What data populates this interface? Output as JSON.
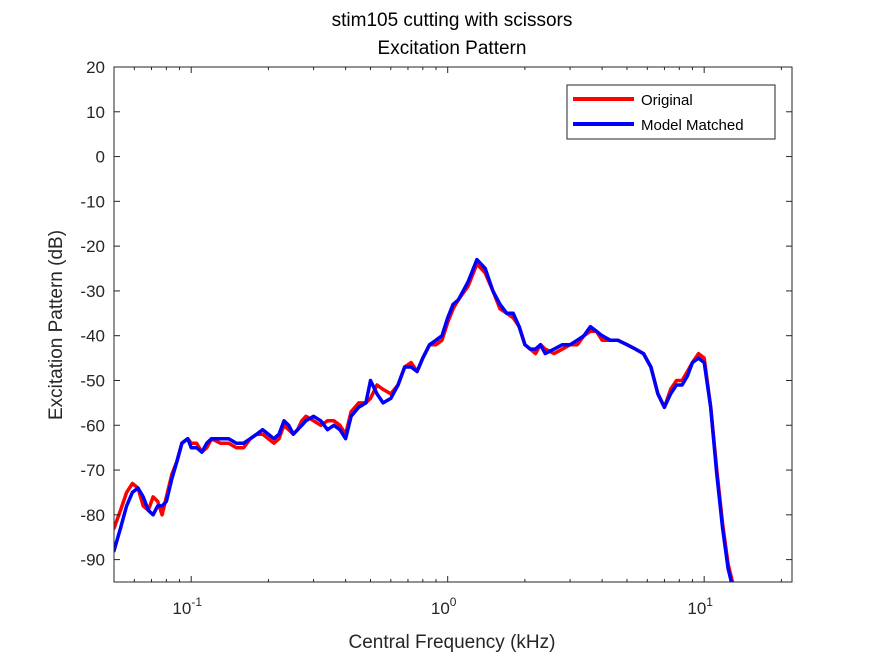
{
  "chart_data": {
    "type": "line",
    "title": "stim105 cutting with scissors",
    "subtitle": "Excitation Pattern",
    "xlabel": "Central Frequency (kHz)",
    "ylabel": "Excitation Pattern (dB)",
    "xscale": "log",
    "xlim": [
      0.05,
      22
    ],
    "ylim": [
      -95,
      20
    ],
    "yticks": [
      20,
      10,
      0,
      -10,
      -20,
      -30,
      -40,
      -50,
      -60,
      -70,
      -80,
      -90
    ],
    "xticks": [
      {
        "value": 0.1,
        "base": "10",
        "exp": "-1"
      },
      {
        "value": 1,
        "base": "10",
        "exp": "0"
      },
      {
        "value": 10,
        "base": "10",
        "exp": "1"
      }
    ],
    "grid": false,
    "legend_position": "top-right",
    "series": [
      {
        "name": "Original",
        "color": "#ff0000",
        "x": [
          0.05,
          0.053,
          0.056,
          0.059,
          0.062,
          0.065,
          0.068,
          0.071,
          0.074,
          0.077,
          0.08,
          0.084,
          0.088,
          0.092,
          0.097,
          0.1,
          0.105,
          0.11,
          0.115,
          0.12,
          0.13,
          0.14,
          0.15,
          0.16,
          0.17,
          0.18,
          0.19,
          0.2,
          0.21,
          0.22,
          0.23,
          0.24,
          0.25,
          0.26,
          0.27,
          0.28,
          0.3,
          0.32,
          0.34,
          0.36,
          0.38,
          0.4,
          0.42,
          0.45,
          0.48,
          0.5,
          0.53,
          0.56,
          0.6,
          0.64,
          0.68,
          0.72,
          0.76,
          0.8,
          0.85,
          0.9,
          0.95,
          1.0,
          1.05,
          1.1,
          1.2,
          1.3,
          1.4,
          1.5,
          1.6,
          1.7,
          1.8,
          1.9,
          2.0,
          2.1,
          2.2,
          2.3,
          2.4,
          2.6,
          2.8,
          3.0,
          3.2,
          3.4,
          3.6,
          3.8,
          4.0,
          4.3,
          4.6,
          5.0,
          5.4,
          5.8,
          6.2,
          6.6,
          7.0,
          7.4,
          7.8,
          8.2,
          8.6,
          9.0,
          9.5,
          10.0,
          10.6,
          11.2,
          11.8,
          12.4,
          12.9
        ],
        "y": [
          -83,
          -79,
          -75,
          -73,
          -74,
          -78,
          -79,
          -76,
          -77,
          -80,
          -76,
          -71,
          -68,
          -64,
          -63,
          -64,
          -64,
          -66,
          -65,
          -63,
          -64,
          -64,
          -65,
          -65,
          -63,
          -62,
          -62,
          -63,
          -64,
          -63,
          -60,
          -61,
          -62,
          -61,
          -59,
          -58,
          -59,
          -60,
          -59,
          -59,
          -60,
          -62,
          -57,
          -55,
          -55,
          -54,
          -51,
          -52,
          -53,
          -51,
          -47,
          -46,
          -48,
          -45,
          -42,
          -42,
          -41,
          -37,
          -34,
          -32,
          -29,
          -24,
          -26,
          -30,
          -34,
          -35,
          -36,
          -38,
          -42,
          -43,
          -44,
          -42,
          -43,
          -44,
          -43,
          -42,
          -42,
          -40,
          -39,
          -39,
          -41,
          -41,
          -41,
          -42,
          -43,
          -44,
          -47,
          -53,
          -56,
          -52,
          -50,
          -50,
          -48,
          -46,
          -44,
          -45,
          -56,
          -70,
          -82,
          -91,
          -95
        ]
      },
      {
        "name": "Model Matched",
        "color": "#0000ff",
        "x": [
          0.05,
          0.053,
          0.056,
          0.059,
          0.062,
          0.065,
          0.068,
          0.071,
          0.074,
          0.077,
          0.08,
          0.084,
          0.088,
          0.092,
          0.097,
          0.1,
          0.105,
          0.11,
          0.115,
          0.12,
          0.13,
          0.14,
          0.15,
          0.16,
          0.17,
          0.18,
          0.19,
          0.2,
          0.21,
          0.22,
          0.23,
          0.24,
          0.25,
          0.26,
          0.27,
          0.28,
          0.3,
          0.32,
          0.34,
          0.36,
          0.38,
          0.4,
          0.42,
          0.45,
          0.48,
          0.5,
          0.53,
          0.56,
          0.6,
          0.64,
          0.68,
          0.72,
          0.76,
          0.8,
          0.85,
          0.9,
          0.95,
          1.0,
          1.05,
          1.1,
          1.2,
          1.3,
          1.4,
          1.5,
          1.6,
          1.7,
          1.8,
          1.9,
          2.0,
          2.1,
          2.2,
          2.3,
          2.4,
          2.6,
          2.8,
          3.0,
          3.2,
          3.4,
          3.6,
          3.8,
          4.0,
          4.3,
          4.6,
          5.0,
          5.4,
          5.8,
          6.2,
          6.6,
          7.0,
          7.4,
          7.8,
          8.2,
          8.6,
          9.0,
          9.5,
          10.0,
          10.6,
          11.2,
          11.8,
          12.4,
          12.9
        ],
        "y": [
          -88,
          -83,
          -78,
          -75,
          -74,
          -76,
          -79,
          -80,
          -78,
          -78,
          -77,
          -72,
          -68,
          -64,
          -63,
          -65,
          -65,
          -66,
          -64,
          -63,
          -63,
          -63,
          -64,
          -64,
          -63,
          -62,
          -61,
          -62,
          -63,
          -62,
          -59,
          -60,
          -62,
          -61,
          -60,
          -59,
          -58,
          -59,
          -61,
          -60,
          -61,
          -63,
          -58,
          -56,
          -55,
          -50,
          -53,
          -55,
          -54,
          -51,
          -47,
          -47,
          -48,
          -45,
          -42,
          -41,
          -40,
          -36,
          -33,
          -32,
          -28,
          -23,
          -25,
          -30,
          -33,
          -35,
          -35,
          -38,
          -42,
          -43,
          -43,
          -42,
          -44,
          -43,
          -42,
          -42,
          -41,
          -40,
          -38,
          -39,
          -40,
          -41,
          -41,
          -42,
          -43,
          -44,
          -47,
          -53,
          -56,
          -53,
          -51,
          -51,
          -49,
          -46,
          -45,
          -46,
          -56,
          -71,
          -83,
          -92,
          -96
        ]
      }
    ]
  }
}
